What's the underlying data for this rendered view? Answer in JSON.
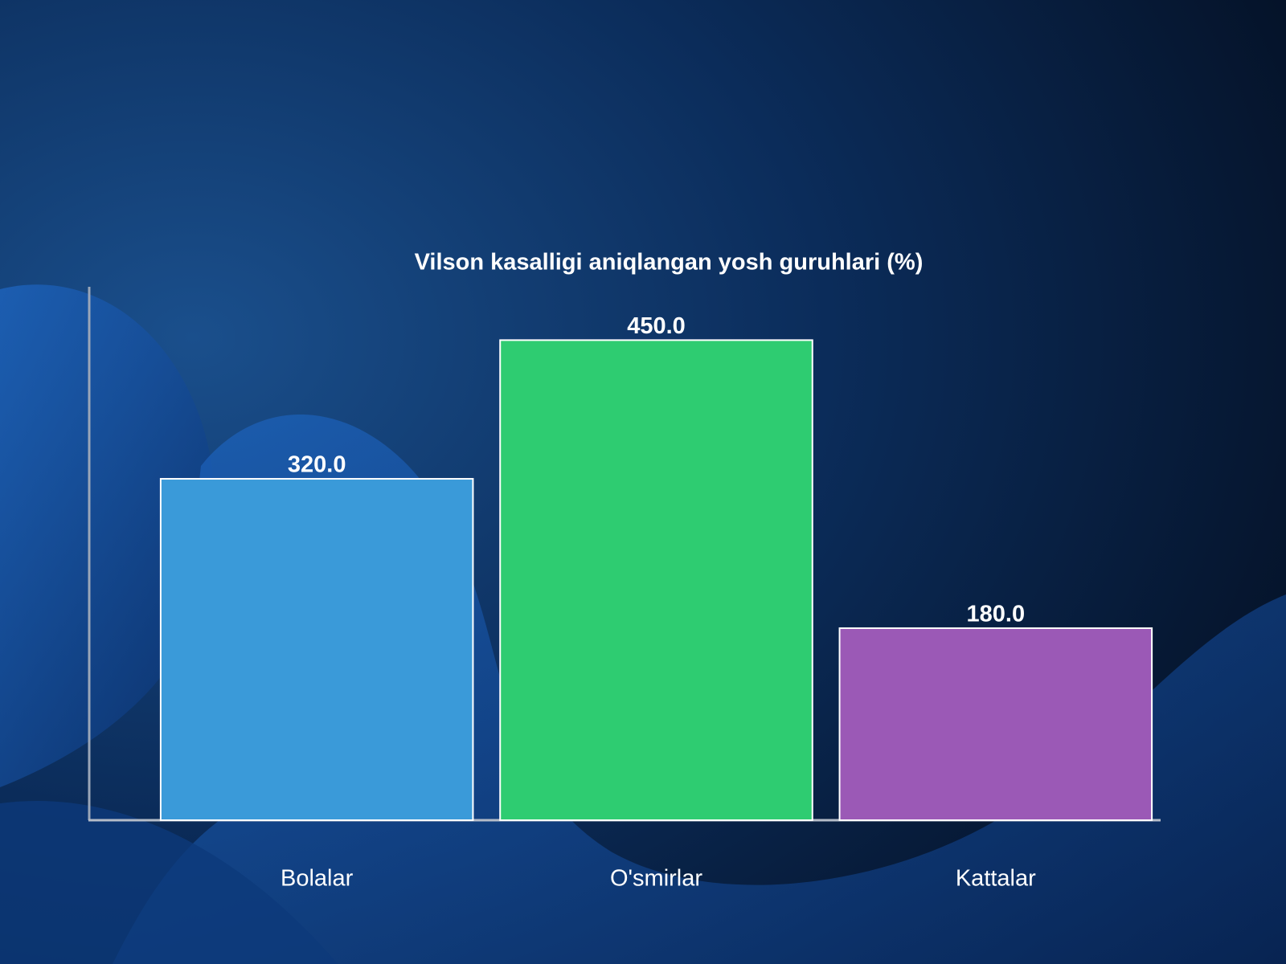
{
  "chart_data": {
    "type": "bar",
    "title": "Vilson kasalligi aniqlangan yosh guruhlari (%)",
    "categories": [
      "Bolalar",
      "O'smirlar",
      "Kattalar"
    ],
    "values": [
      320,
      450,
      180
    ],
    "value_labels": [
      "320.0",
      "450.0",
      "180.0"
    ],
    "colors": [
      "#3a9ad9",
      "#2ecc71",
      "#9b59b6"
    ],
    "ylim": [
      0,
      500
    ]
  }
}
